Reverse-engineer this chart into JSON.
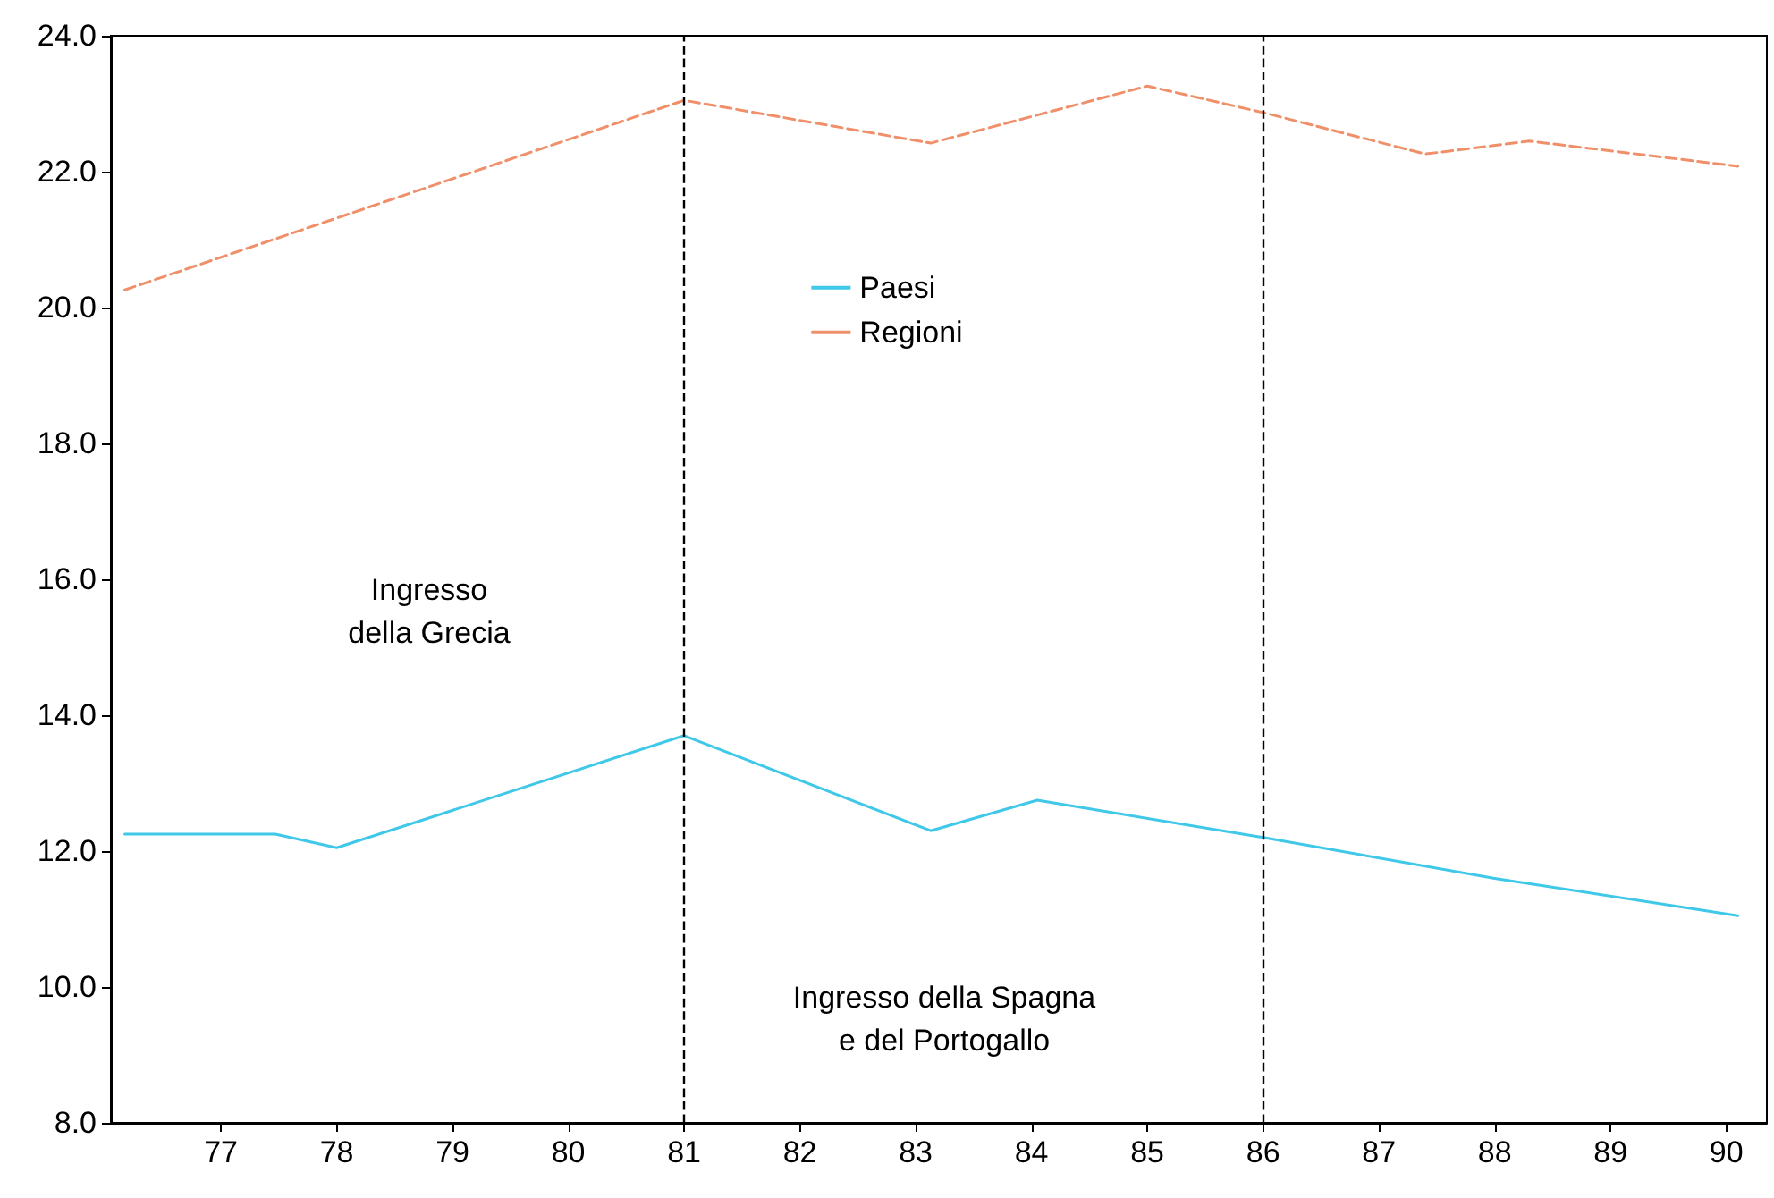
{
  "chart_data": {
    "type": "line",
    "xlim": [
      76.05,
      90.35
    ],
    "xticks": [
      77,
      78,
      79,
      80,
      81,
      82,
      83,
      84,
      85,
      86,
      87,
      88,
      89,
      90
    ],
    "ylim": [
      8,
      24
    ],
    "yticks": [
      {
        "value": 8,
        "label": "8.0"
      },
      {
        "value": 10,
        "label": "10.0"
      },
      {
        "value": 12,
        "label": "12.0"
      },
      {
        "value": 14,
        "label": "14.0"
      },
      {
        "value": 16,
        "label": "16.0"
      },
      {
        "value": 18,
        "label": "18.0"
      },
      {
        "value": 20,
        "label": "20.0"
      },
      {
        "value": 22,
        "label": "22.0"
      },
      {
        "value": 24,
        "label": "24.0"
      }
    ],
    "series": [
      {
        "name": "Paesi",
        "color": "#3fc8e8",
        "line_style": "solid",
        "x": [
          76.17,
          77.47,
          78,
          81,
          83.13,
          84.05,
          86,
          88,
          90.1
        ],
        "values": [
          12.25,
          12.25,
          12.05,
          13.7,
          12.3,
          12.75,
          12.2,
          11.6,
          11.05
        ]
      },
      {
        "name": "Regioni",
        "color": "#f0906a",
        "line_style": "dashed",
        "x": [
          76.17,
          81,
          83.13,
          85,
          86,
          87.4,
          88.3,
          90.1
        ],
        "values": [
          20.26,
          23.05,
          22.42,
          23.26,
          22.87,
          22.26,
          22.45,
          22.08
        ]
      }
    ],
    "ref_lines": [
      {
        "axis": "x",
        "value": 81,
        "color": "#000000",
        "line_style": "dashed"
      },
      {
        "axis": "x",
        "value": 86,
        "color": "#000000",
        "line_style": "dashed"
      }
    ],
    "annotations": [
      "Ingresso\ndella Grecia",
      "Ingresso della Spagna\ne del Portogallo"
    ],
    "legend": "top",
    "grid": false,
    "marker": "none"
  }
}
